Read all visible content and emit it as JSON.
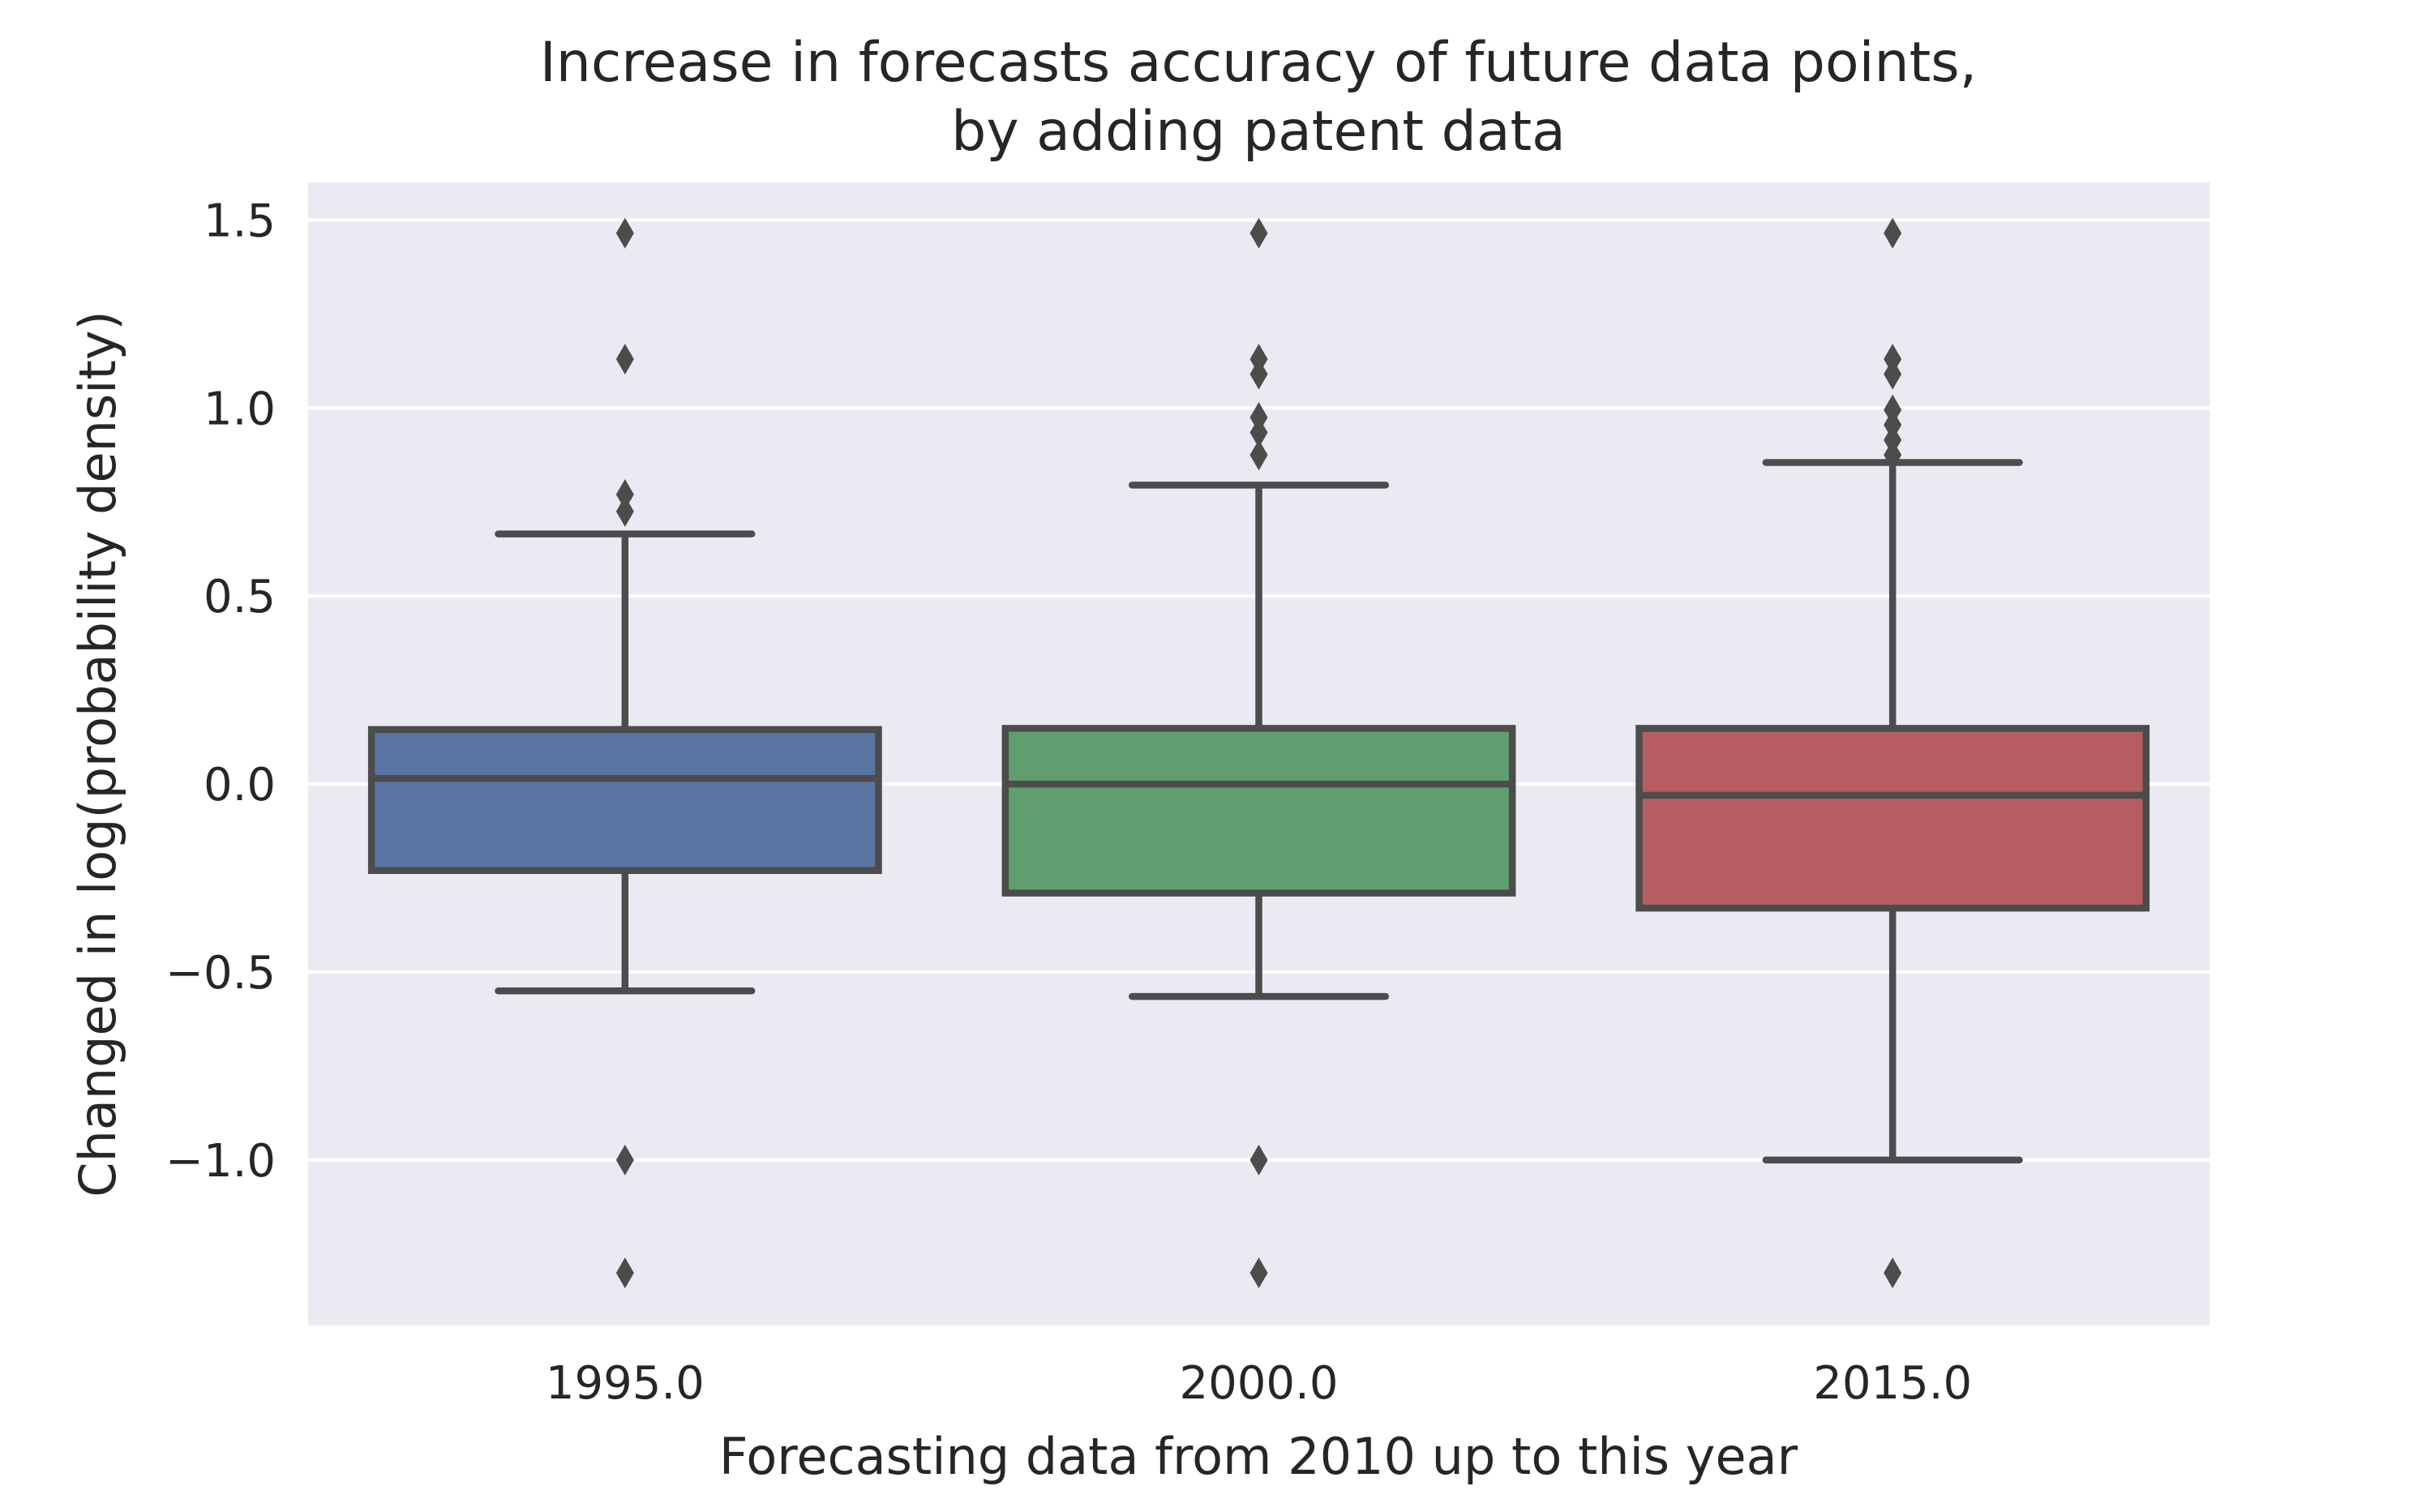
{
  "chart_data": {
    "type": "boxplot",
    "title": [
      "Increase in forecasts accuracy of future data points,",
      "by adding patent data"
    ],
    "xlabel": "Forecasting data from 2010 up to this year",
    "ylabel": "Changed in log(probability density)",
    "ylim": [
      -1.44,
      1.6
    ],
    "yticks": [
      1.5,
      1.0,
      0.5,
      0.0,
      -0.5,
      -1.0
    ],
    "ytick_labels": [
      "1.5",
      "1.0",
      "0.5",
      "0.0",
      "−0.5",
      "−1.0"
    ],
    "grid": true,
    "categories": [
      "1995.0",
      "2000.0",
      "2015.0"
    ],
    "boxes": [
      {
        "category": "1995.0",
        "color": "#5975a4",
        "whisker_low": -0.55,
        "q1": -0.23,
        "median": 0.015,
        "q3": 0.145,
        "whisker_high": 0.665,
        "outliers": [
          1.465,
          1.13,
          0.77,
          0.725,
          -1.0,
          -1.3
        ]
      },
      {
        "category": "2000.0",
        "color": "#5f9e6e",
        "whisker_low": -0.565,
        "q1": -0.29,
        "median": 0.0,
        "q3": 0.148,
        "whisker_high": 0.795,
        "outliers": [
          1.465,
          1.13,
          1.09,
          0.975,
          0.935,
          0.875,
          -1.0,
          -1.3
        ]
      },
      {
        "category": "2015.0",
        "color": "#b55d60",
        "whisker_low": -1.0,
        "q1": -0.33,
        "median": -0.03,
        "q3": 0.148,
        "whisker_high": 0.855,
        "outliers": [
          1.465,
          1.13,
          1.09,
          0.995,
          0.955,
          0.915,
          0.875,
          -1.3
        ]
      }
    ],
    "colors": {
      "background": "#eaeaf2",
      "grid": "#ffffff",
      "line": "#4c4c4c",
      "text": "#262626"
    }
  }
}
